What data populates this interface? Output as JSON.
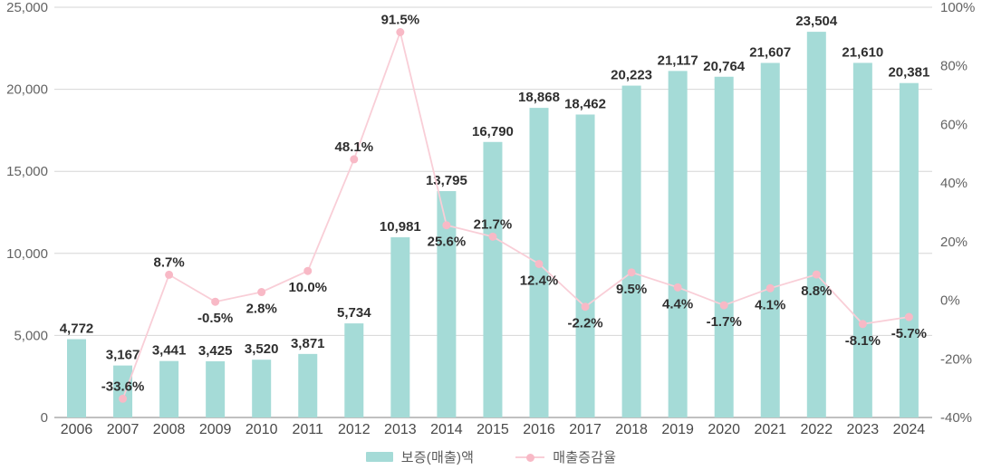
{
  "chart_data": {
    "type": "bar+line",
    "title": "",
    "categories": [
      "2006",
      "2007",
      "2008",
      "2009",
      "2010",
      "2011",
      "2012",
      "2013",
      "2014",
      "2015",
      "2016",
      "2017",
      "2018",
      "2019",
      "2020",
      "2021",
      "2022",
      "2023",
      "2024"
    ],
    "series": [
      {
        "name": "보증(매출)액",
        "type": "bar",
        "axis": "left",
        "color": "#a5dbd7",
        "values": [
          4772,
          3167,
          3441,
          3425,
          3520,
          3871,
          5734,
          10981,
          13795,
          16790,
          18868,
          18462,
          20223,
          21117,
          20764,
          21607,
          23504,
          21610,
          20381
        ],
        "labels": [
          "4,772",
          "3,167",
          "3,441",
          "3,425",
          "3,520",
          "3,871",
          "5,734",
          "10,981",
          "13,795",
          "16,790",
          "18,868",
          "18,462",
          "20,223",
          "21,117",
          "20,764",
          "21,607",
          "23,504",
          "21,610",
          "20,381"
        ]
      },
      {
        "name": "매출증감율",
        "type": "line",
        "axis": "right",
        "color": "#f9ced7",
        "marker_color": "#f8b9c6",
        "values": [
          null,
          -33.6,
          8.7,
          -0.5,
          2.8,
          10.0,
          48.1,
          91.5,
          25.6,
          21.7,
          12.4,
          -2.2,
          9.5,
          4.4,
          -1.7,
          4.1,
          8.8,
          -8.1,
          -5.7
        ],
        "labels": [
          null,
          "-33.6%",
          "8.7%",
          "-0.5%",
          "2.8%",
          "10.0%",
          "48.1%",
          "91.5%",
          "25.6%",
          "21.7%",
          "12.4%",
          "-2.2%",
          "9.5%",
          "4.4%",
          "-1.7%",
          "4.1%",
          "8.8%",
          "-8.1%",
          "-5.7%"
        ],
        "label_positions": [
          null,
          "above",
          "above",
          "below",
          "below",
          "below",
          "above",
          "above",
          "below",
          "above",
          "below",
          "below",
          "below",
          "below",
          "below",
          "below",
          "below",
          "below",
          "below"
        ]
      }
    ],
    "left_axis": {
      "min": 0,
      "max": 25000,
      "step": 5000,
      "tick_labels": [
        "0",
        "5,000",
        "10,000",
        "15,000",
        "20,000",
        "25,000"
      ]
    },
    "right_axis": {
      "min": -40,
      "max": 100,
      "step": 20,
      "tick_labels": [
        "-40%",
        "-20%",
        "0%",
        "20%",
        "40%",
        "60%",
        "80%",
        "100%"
      ]
    },
    "grid": true,
    "legend_position": "bottom",
    "colors": {
      "grid": "#d6d6d6",
      "baseline": "#ababab",
      "value_label": "#2f2f2f",
      "axis_tick": "#636363",
      "year_label": "#484848"
    }
  }
}
